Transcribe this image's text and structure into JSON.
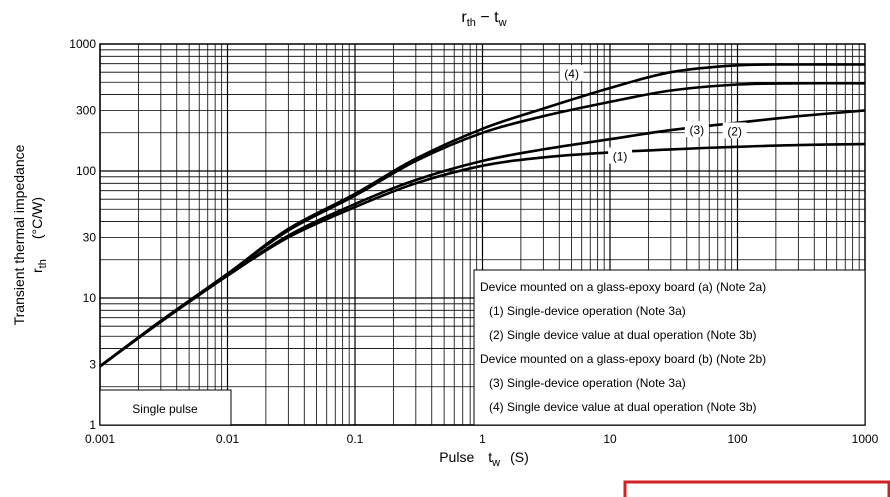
{
  "chart_data": {
    "type": "line",
    "title_main": "r",
    "title_sub": "th",
    "title_sep": " − ",
    "title_main2": "t",
    "title_sub2": "w",
    "xlabel_main": "Pulse",
    "xlabel_sym": "t",
    "xlabel_symsub": "w",
    "xlabel_unit": "(S)",
    "ylabel_line1": "Transient thermal impedance",
    "ylabel_sym": "r",
    "ylabel_symsub": "th",
    "ylabel_unit": "(°C/W)",
    "x_scale": "log",
    "y_scale": "log",
    "xlim": [
      0.001,
      1000
    ],
    "ylim": [
      1,
      1000
    ],
    "x_ticks": [
      {
        "v": 0.001,
        "label": "0.001"
      },
      {
        "v": 0.01,
        "label": "0.01"
      },
      {
        "v": 0.1,
        "label": "0.1"
      },
      {
        "v": 1,
        "label": "1"
      },
      {
        "v": 10,
        "label": "10"
      },
      {
        "v": 100,
        "label": "100"
      },
      {
        "v": 1000,
        "label": "1000"
      }
    ],
    "y_ticks": [
      {
        "v": 1,
        "label": "1"
      },
      {
        "v": 3,
        "label": "3"
      },
      {
        "v": 10,
        "label": "10"
      },
      {
        "v": 30,
        "label": "30"
      },
      {
        "v": 100,
        "label": "100"
      },
      {
        "v": 300,
        "label": "300"
      },
      {
        "v": 1000,
        "label": "1000"
      }
    ],
    "grid": true,
    "series": [
      {
        "name": "(1)",
        "x": [
          0.001,
          0.003,
          0.01,
          0.03,
          0.1,
          0.3,
          1,
          3,
          10,
          30,
          100,
          300,
          1000
        ],
        "y": [
          2.9,
          6.5,
          15,
          30,
          52,
          80,
          110,
          128,
          140,
          148,
          155,
          160,
          163
        ]
      },
      {
        "name": "(2)",
        "x": [
          0.001,
          0.003,
          0.01,
          0.03,
          0.1,
          0.3,
          1,
          3,
          10,
          30,
          100,
          300,
          1000
        ],
        "y": [
          2.9,
          6.5,
          15,
          31,
          55,
          85,
          120,
          148,
          178,
          210,
          240,
          270,
          300
        ]
      },
      {
        "name": "(3)",
        "x": [
          0.001,
          0.003,
          0.01,
          0.03,
          0.1,
          0.3,
          1,
          3,
          10,
          30,
          100,
          300,
          1000
        ],
        "y": [
          2.9,
          6.6,
          15.5,
          34,
          64,
          120,
          200,
          270,
          350,
          430,
          480,
          490,
          490
        ]
      },
      {
        "name": "(4)",
        "x": [
          0.001,
          0.003,
          0.01,
          0.03,
          0.1,
          0.3,
          1,
          3,
          10,
          30,
          100,
          300,
          1000
        ],
        "y": [
          2.9,
          6.6,
          15.5,
          35,
          66,
          125,
          215,
          310,
          450,
          600,
          680,
          690,
          690
        ]
      }
    ],
    "curve_labels": [
      {
        "text": "(1)",
        "x": 12,
        "y": 130
      },
      {
        "text": "(2)",
        "x": 95,
        "y": 205
      },
      {
        "text": "(3)",
        "x": 48,
        "y": 210
      },
      {
        "text": "(4)",
        "x": 5,
        "y": 580
      }
    ],
    "legend": {
      "placement": "bottom-right",
      "lines": [
        "Device mounted on a glass-epoxy board (a) (Note 2a)",
        "(1) Single-device operation (Note 3a)",
        "(2) Single device value at dual operation (Note 3b)",
        "Device mounted on a glass-epoxy board (b) (Note 2b)",
        "(3) Single-device operation (Note 3a)",
        "(4) Single device value at dual operation (Note 3b)"
      ],
      "indent": [
        false,
        true,
        true,
        false,
        true,
        true
      ]
    },
    "note": "Single pulse",
    "colors": {
      "curve": "#000000",
      "grid": "#000000",
      "accent_box": "#d32020"
    }
  }
}
